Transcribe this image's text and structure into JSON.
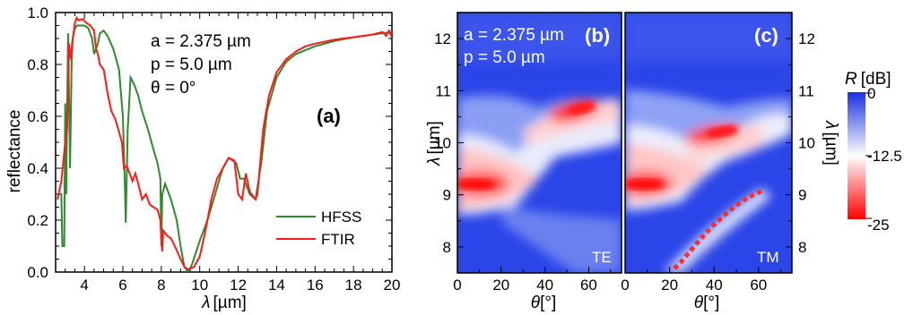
{
  "chart_data": [
    {
      "type": "line",
      "panel": "(a)",
      "xlabel_sym": "λ",
      "xlabel_unit": "[µm]",
      "ylabel": "reflectance",
      "xlim": [
        2.5,
        20
      ],
      "ylim": [
        0,
        1.0
      ],
      "xticks": [
        "4",
        "6",
        "8",
        "10",
        "12",
        "14",
        "16",
        "18",
        "20"
      ],
      "yticks": [
        "0.0",
        "0.2",
        "0.4",
        "0.6",
        "0.8",
        "1.0"
      ],
      "grid": false,
      "legend": "bottom-right",
      "annotations": [
        "a = 2.375 µm",
        "p = 5.0 µm",
        "θ = 0°"
      ],
      "series": [
        {
          "name": "HFSS",
          "color": "#2e8b2e",
          "points": [
            [
              2.6,
              0.3
            ],
            [
              2.8,
              0.3
            ],
            [
              2.85,
              0.1
            ],
            [
              2.95,
              0.1
            ],
            [
              3.0,
              0.65
            ],
            [
              3.05,
              0.3
            ],
            [
              3.15,
              0.92
            ],
            [
              3.25,
              0.4
            ],
            [
              3.35,
              0.88
            ],
            [
              3.45,
              0.93
            ],
            [
              3.6,
              0.95
            ],
            [
              3.8,
              0.95
            ],
            [
              4.0,
              0.95
            ],
            [
              4.2,
              0.94
            ],
            [
              4.4,
              0.9
            ],
            [
              4.5,
              0.84
            ],
            [
              4.6,
              0.86
            ],
            [
              4.7,
              0.88
            ],
            [
              4.8,
              0.92
            ],
            [
              5.0,
              0.93
            ],
            [
              5.2,
              0.91
            ],
            [
              5.5,
              0.86
            ],
            [
              5.8,
              0.78
            ],
            [
              6.0,
              0.6
            ],
            [
              6.1,
              0.35
            ],
            [
              6.15,
              0.19
            ],
            [
              6.25,
              0.55
            ],
            [
              6.4,
              0.75
            ],
            [
              6.6,
              0.72
            ],
            [
              6.8,
              0.68
            ],
            [
              7.0,
              0.62
            ],
            [
              7.3,
              0.55
            ],
            [
              7.6,
              0.47
            ],
            [
              7.8,
              0.42
            ],
            [
              7.95,
              0.36
            ],
            [
              8.0,
              0.1
            ],
            [
              8.05,
              0.3
            ],
            [
              8.2,
              0.34
            ],
            [
              8.5,
              0.28
            ],
            [
              8.8,
              0.2
            ],
            [
              9.0,
              0.1
            ],
            [
              9.2,
              0.02
            ],
            [
              9.4,
              0.0
            ],
            [
              9.6,
              0.03
            ],
            [
              10.0,
              0.12
            ],
            [
              10.4,
              0.2
            ],
            [
              10.8,
              0.3
            ],
            [
              11.2,
              0.4
            ],
            [
              11.5,
              0.44
            ],
            [
              11.9,
              0.42
            ],
            [
              12.1,
              0.36
            ],
            [
              12.3,
              0.36
            ],
            [
              12.6,
              0.3
            ],
            [
              12.9,
              0.28
            ],
            [
              13.2,
              0.42
            ],
            [
              13.5,
              0.62
            ],
            [
              14.0,
              0.75
            ],
            [
              14.5,
              0.81
            ],
            [
              15.0,
              0.84
            ],
            [
              16.0,
              0.87
            ],
            [
              17.0,
              0.89
            ],
            [
              18.0,
              0.905
            ],
            [
              19.0,
              0.915
            ],
            [
              20.0,
              0.925
            ]
          ]
        },
        {
          "name": "FTIR",
          "color": "#ff1a1a",
          "points": [
            [
              2.6,
              0.28
            ],
            [
              2.8,
              0.35
            ],
            [
              3.0,
              0.5
            ],
            [
              3.1,
              0.55
            ],
            [
              3.2,
              0.88
            ],
            [
              3.3,
              0.82
            ],
            [
              3.4,
              0.9
            ],
            [
              3.5,
              0.96
            ],
            [
              3.6,
              0.98
            ],
            [
              3.7,
              0.97
            ],
            [
              3.9,
              0.975
            ],
            [
              4.1,
              0.96
            ],
            [
              4.3,
              0.95
            ],
            [
              4.5,
              0.93
            ],
            [
              4.6,
              0.86
            ],
            [
              4.7,
              0.84
            ],
            [
              4.8,
              0.8
            ],
            [
              5.0,
              0.78
            ],
            [
              5.2,
              0.69
            ],
            [
              5.4,
              0.62
            ],
            [
              5.6,
              0.59
            ],
            [
              5.8,
              0.54
            ],
            [
              5.95,
              0.5
            ],
            [
              6.05,
              0.4
            ],
            [
              6.2,
              0.41
            ],
            [
              6.35,
              0.38
            ],
            [
              6.5,
              0.35
            ],
            [
              6.65,
              0.38
            ],
            [
              6.8,
              0.34
            ],
            [
              7.0,
              0.28
            ],
            [
              7.2,
              0.3
            ],
            [
              7.4,
              0.26
            ],
            [
              7.6,
              0.25
            ],
            [
              7.8,
              0.24
            ],
            [
              7.95,
              0.2
            ],
            [
              8.0,
              0.12
            ],
            [
              8.05,
              0.08
            ],
            [
              8.1,
              0.16
            ],
            [
              8.3,
              0.14
            ],
            [
              8.5,
              0.13
            ],
            [
              8.7,
              0.1
            ],
            [
              9.0,
              0.05
            ],
            [
              9.2,
              0.02
            ],
            [
              9.4,
              0.01
            ],
            [
              9.7,
              0.02
            ],
            [
              10.0,
              0.06
            ],
            [
              10.3,
              0.16
            ],
            [
              10.6,
              0.28
            ],
            [
              10.9,
              0.36
            ],
            [
              11.2,
              0.4
            ],
            [
              11.5,
              0.44
            ],
            [
              11.8,
              0.43
            ],
            [
              12.0,
              0.3
            ],
            [
              12.2,
              0.28
            ],
            [
              12.4,
              0.38
            ],
            [
              12.6,
              0.31
            ],
            [
              12.9,
              0.28
            ],
            [
              13.0,
              0.3
            ],
            [
              13.3,
              0.55
            ],
            [
              13.6,
              0.68
            ],
            [
              14.0,
              0.77
            ],
            [
              14.5,
              0.82
            ],
            [
              15.0,
              0.85
            ],
            [
              15.5,
              0.87
            ],
            [
              16.0,
              0.88
            ],
            [
              17.0,
              0.895
            ],
            [
              18.0,
              0.905
            ],
            [
              19.0,
              0.915
            ],
            [
              19.5,
              0.925
            ],
            [
              19.7,
              0.91
            ],
            [
              19.85,
              0.93
            ],
            [
              20.0,
              0.905
            ]
          ]
        }
      ]
    },
    {
      "type": "heatmap",
      "panel": "(b)",
      "mode": "TE",
      "xlabel_sym": "θ",
      "xlabel_unit": "[°]",
      "ylabel_sym": "λ",
      "ylabel_unit": "[µm]",
      "xlim": [
        0,
        75
      ],
      "ylim": [
        7.5,
        12.5
      ],
      "xticks": [
        "0",
        "20",
        "40",
        "60"
      ],
      "yticks": [
        "8",
        "9",
        "10",
        "11",
        "12"
      ],
      "annotations": [
        "a = 2.375 µm",
        "p = 5.0 µm"
      ],
      "features": [
        {
          "theta": 0,
          "lambda": 9.25,
          "r_db": -25
        },
        {
          "theta": 20,
          "lambda": 9.3,
          "r_db": -20
        },
        {
          "theta": 40,
          "lambda": 10.2,
          "r_db": -13
        },
        {
          "theta": 57,
          "lambda": 10.7,
          "r_db": -25
        }
      ]
    },
    {
      "type": "heatmap",
      "panel": "(c)",
      "mode": "TM",
      "xlabel_sym": "θ",
      "xlabel_unit": "[°]",
      "ylabel_sym": "λ",
      "ylabel_unit": "[µm]",
      "xlim": [
        0,
        75
      ],
      "ylim": [
        7.5,
        12.5
      ],
      "xticks": [
        "0",
        "20",
        "40",
        "60"
      ],
      "yticks": [
        "8",
        "9",
        "10",
        "11",
        "12"
      ],
      "features": [
        {
          "theta": 0,
          "lambda": 9.2,
          "r_db": -25
        },
        {
          "theta": 42,
          "lambda": 10.3,
          "r_db": -25
        },
        {
          "theta": 22,
          "lambda": 7.6,
          "r_db": -20
        },
        {
          "theta": 55,
          "lambda": 9.0,
          "r_db": -20
        }
      ]
    }
  ],
  "colorbar": {
    "label_sym": "R",
    "label_unit": "[dB]",
    "ticks": [
      "0",
      "-12.5",
      "-25"
    ],
    "range": [
      0,
      -25
    ],
    "colors": [
      "#1a2fe0",
      "#ffffff",
      "#ff0000"
    ]
  }
}
